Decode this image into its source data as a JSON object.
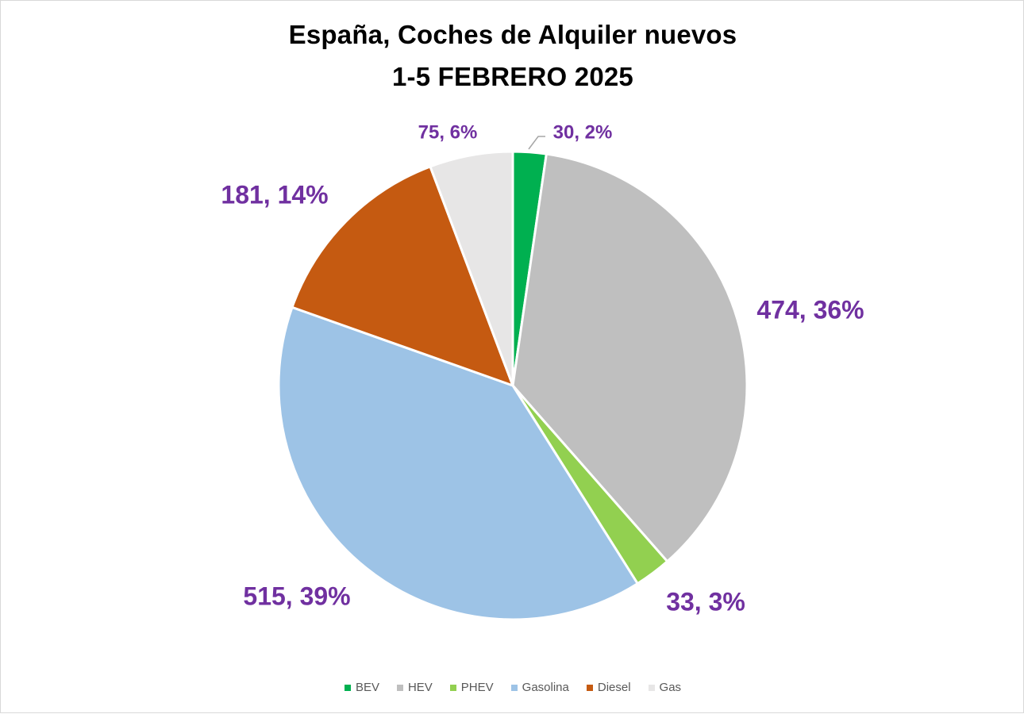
{
  "chart_data": {
    "type": "pie",
    "title_lines": [
      "España, Coches de Alquiler nuevos",
      "1-5 FEBRERO 2025"
    ],
    "categories": [
      "BEV",
      "HEV",
      "PHEV",
      "Gasolina",
      "Diesel",
      "Gas"
    ],
    "values": [
      30,
      474,
      33,
      515,
      181,
      75
    ],
    "percent_labels": [
      "2%",
      "36%",
      "3%",
      "39%",
      "14%",
      "6%"
    ],
    "data_labels": [
      "30, 2%",
      "474, 36%",
      "33, 3%",
      "515, 39%",
      "181, 14%",
      "75, 6%"
    ],
    "colors": [
      "#00b050",
      "#bfbfbf",
      "#92d050",
      "#9dc3e6",
      "#c55a11",
      "#e7e6e6"
    ],
    "label_color": "#7030a0",
    "start_angle": "12 o'clock",
    "direction": "clockwise",
    "legend_position": "bottom",
    "legend": [
      "BEV",
      "HEV",
      "PHEV",
      "Gasolina",
      "Diesel",
      "Gas"
    ]
  }
}
